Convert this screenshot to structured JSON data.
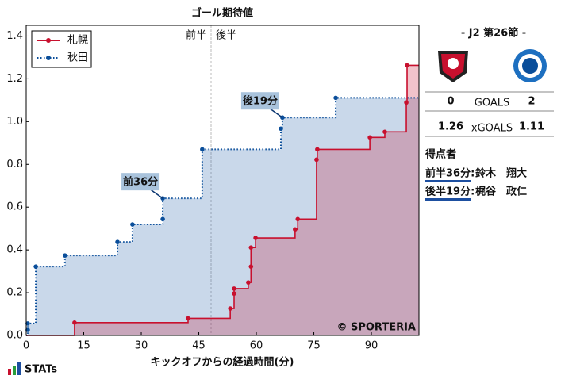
{
  "chart_data": {
    "type": "step",
    "title": "ゴール期待値",
    "x_label": "キックオフからの経過時間(分)",
    "xlim": [
      0,
      102.4
    ],
    "ylim": [
      0,
      1.45
    ],
    "xticks": [
      0,
      15,
      30,
      45,
      60,
      75,
      90
    ],
    "yticks": [
      {
        "value": 0,
        "label": "0.0"
      },
      0.2,
      0.4,
      0.6,
      0.8,
      {
        "value": 1,
        "label": "1.0"
      },
      1.2,
      1.4
    ],
    "legend": "upper left",
    "halftime": 48.2,
    "half_labels": [
      "前半",
      "後半"
    ],
    "series": [
      {
        "name": "札幌",
        "color": "#c8102e",
        "fill": "rgba(200,16,46,0.25)",
        "x": [
          0,
          12.6,
          42.2,
          53.2,
          54.2,
          54.2,
          57.9,
          58.6,
          58.6,
          59.8,
          70.1,
          70.8,
          75.7,
          75.9,
          89.6,
          93.5,
          99.1,
          99.3
        ],
        "values": [
          0,
          0.06,
          0.08,
          0.126,
          0.196,
          0.219,
          0.248,
          0.322,
          0.411,
          0.456,
          0.496,
          0.544,
          0.822,
          0.87,
          0.926,
          0.952,
          1.089,
          1.263
        ]
      },
      {
        "name": "秋田",
        "color": "#0a4e9a",
        "fill": "rgba(40,100,170,0.25)",
        "dotted": true,
        "x": [
          0,
          0.4,
          0.4,
          2.5,
          10.1,
          23.8,
          27.7,
          35.6,
          35.6,
          45.9,
          66.4,
          66.8,
          80.7
        ],
        "values": [
          0,
          0.026,
          0.056,
          0.322,
          0.374,
          0.437,
          0.519,
          0.544,
          0.641,
          0.87,
          0.967,
          1.019,
          1.111
        ]
      }
    ],
    "annotations": [
      {
        "text": "前36分",
        "x": 35.6,
        "y": 0.641
      },
      {
        "text": "後19分",
        "x": 66.8,
        "y": 1.019
      }
    ],
    "watermark": "© SPORTERIA"
  },
  "match": {
    "round": "-  J2 第26節  -",
    "goals_label": "GOALS",
    "xg_label": "xGOALS",
    "home": {
      "goals": 0,
      "xg": 1.26
    },
    "away": {
      "goals": 2,
      "xg": 1.11
    },
    "scorers_title": "得点者",
    "scorers": [
      {
        "time": "前半36分:",
        "name": "鈴木　翔大"
      },
      {
        "time": "後半19分:",
        "name": "梶谷　政仁"
      }
    ]
  },
  "footer": "STATs"
}
